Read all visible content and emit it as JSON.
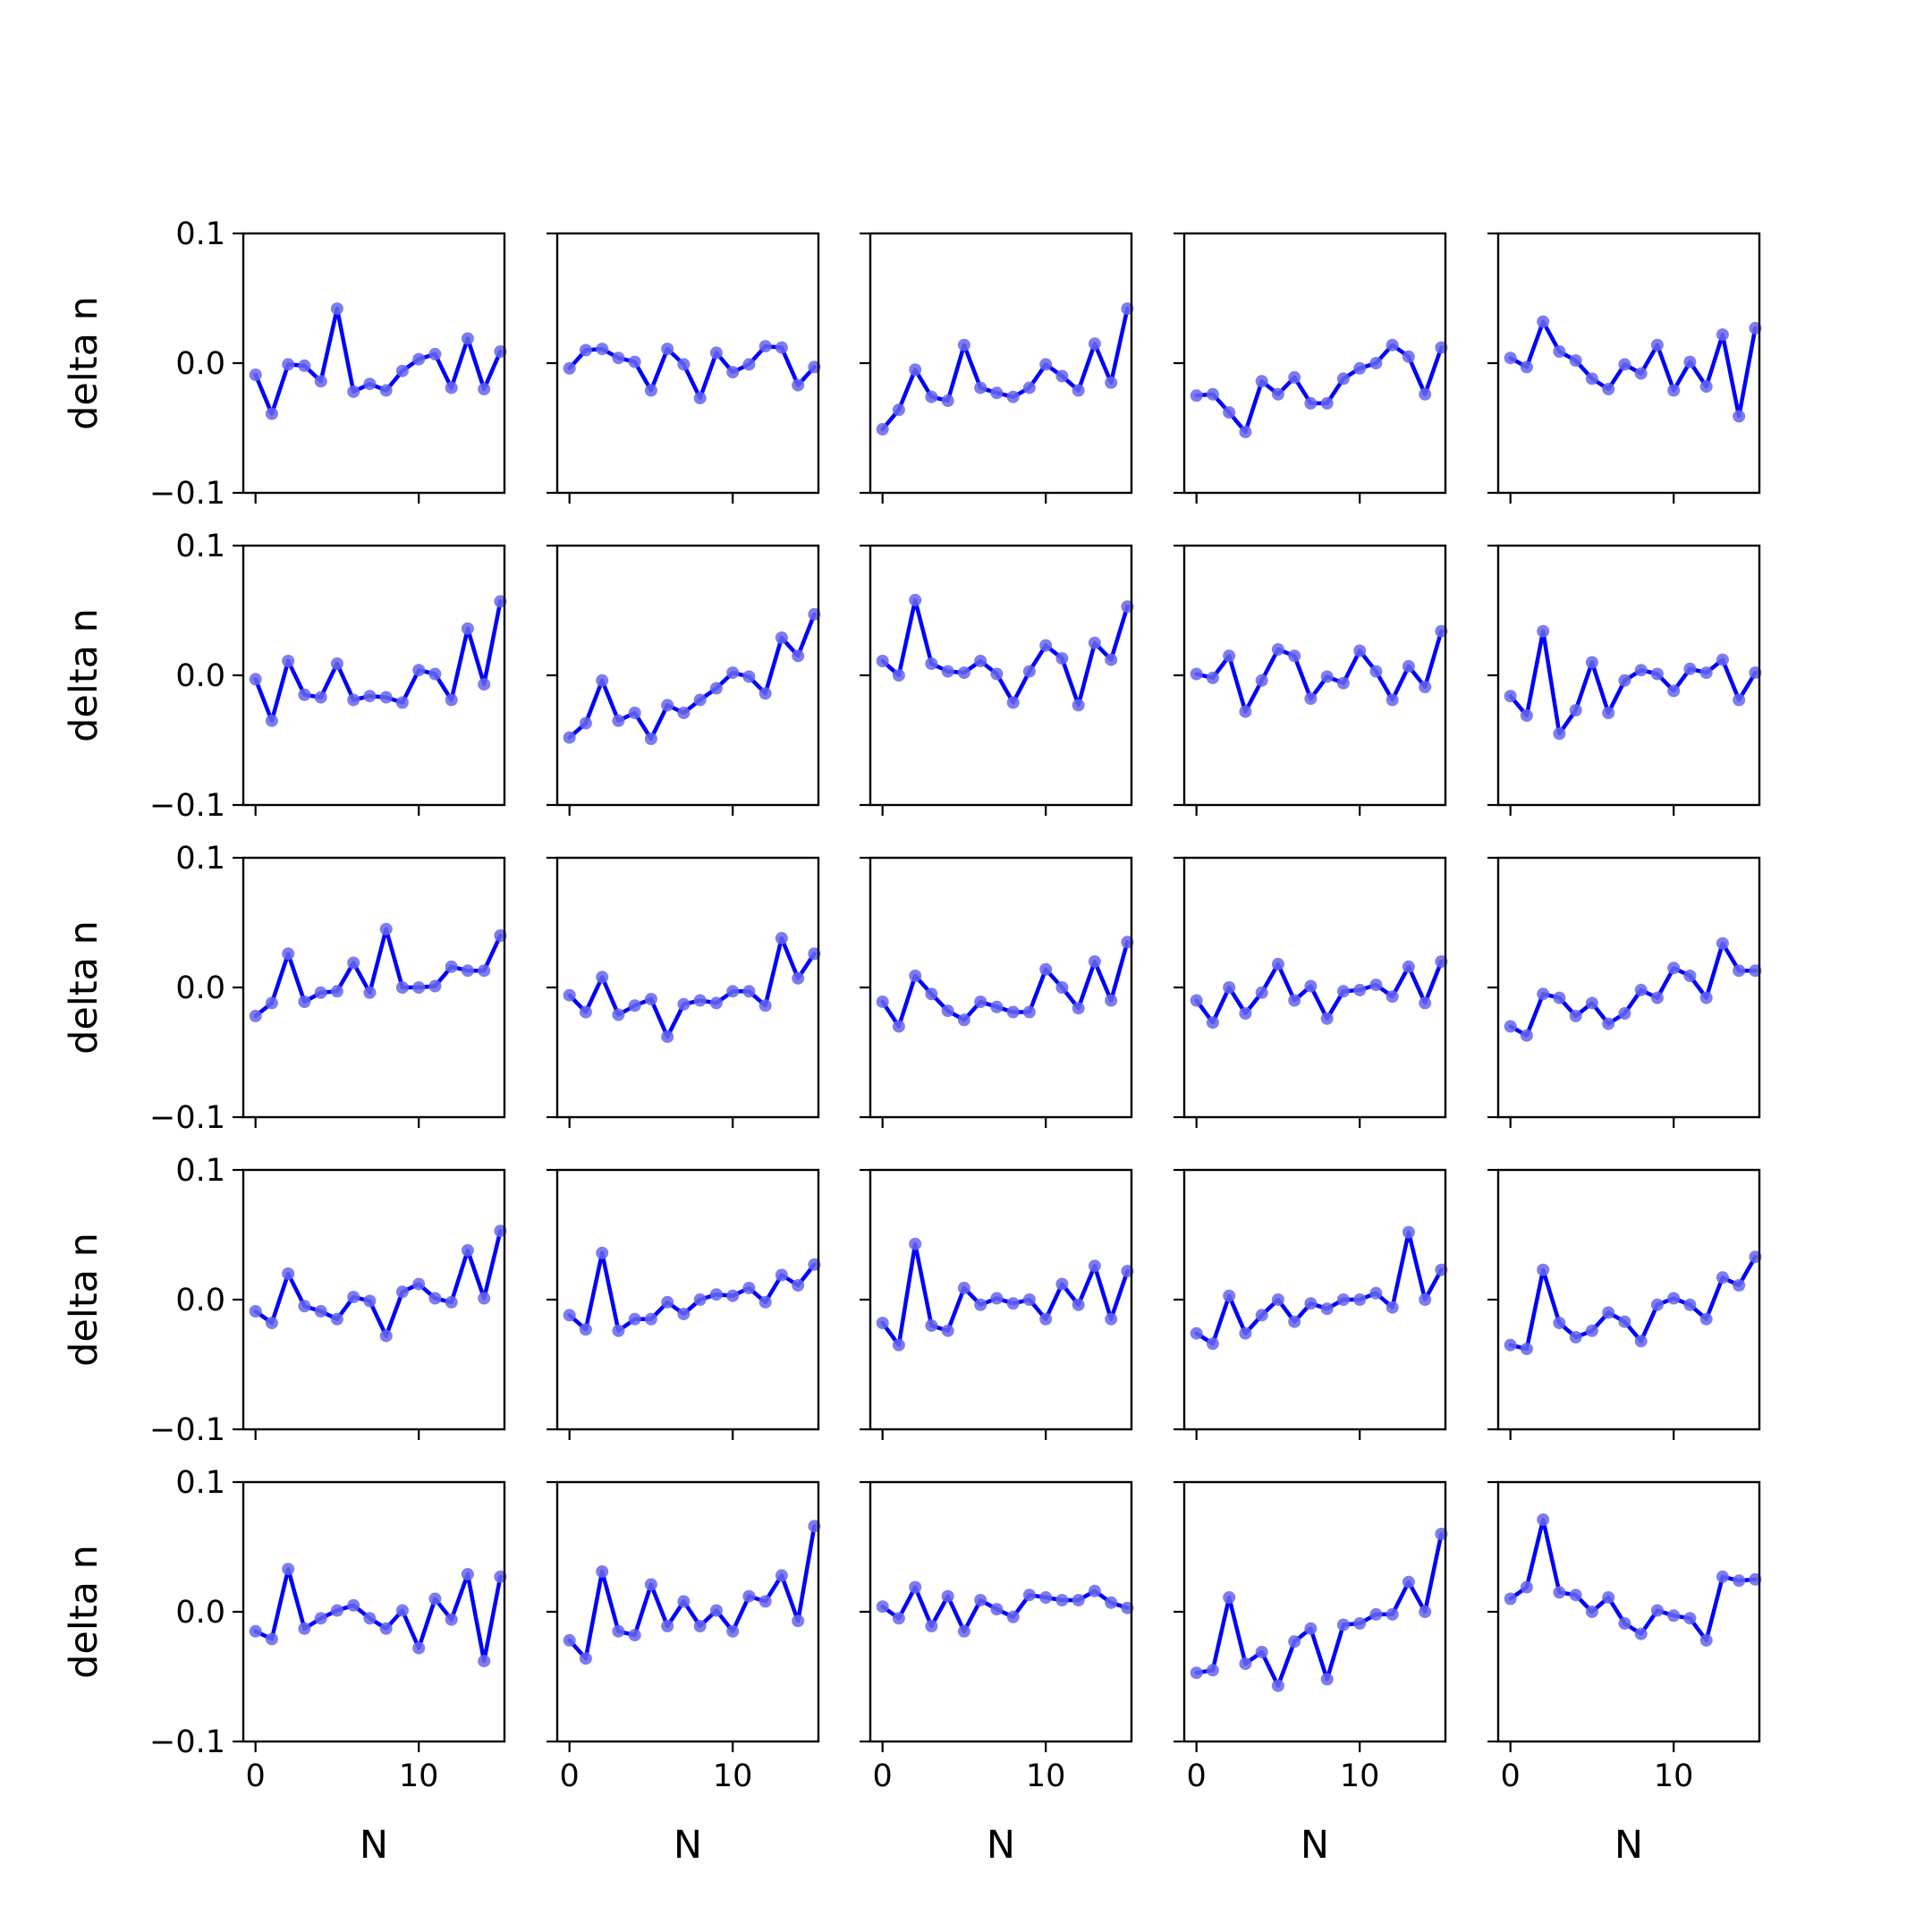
{
  "chart_data": {
    "type": "line",
    "layout": "5x5 grid of small-multiple line plots with markers",
    "sharex": true,
    "sharey": true,
    "xlabel": "N",
    "ylabel": "delta n",
    "xlim": [
      -0.75,
      15.25
    ],
    "ylim": [
      -0.1,
      0.1
    ],
    "xticks": [
      0,
      10
    ],
    "xtick_labels": [
      "0",
      "10"
    ],
    "yticks": [
      -0.1,
      0.0,
      0.1
    ],
    "ytick_labels": [
      "−0.1",
      "0.0",
      "0.1"
    ],
    "grid": false,
    "line_color": "#0000ff",
    "marker_color": "#6666ee",
    "x": [
      0,
      1,
      2,
      3,
      4,
      5,
      6,
      7,
      8,
      9,
      10,
      11,
      12,
      13,
      14,
      15
    ],
    "panels": [
      [
        [
          -0.009,
          -0.039,
          -0.001,
          -0.002,
          -0.014,
          0.042,
          -0.022,
          -0.016,
          -0.021,
          -0.006,
          0.003,
          0.007,
          -0.019,
          0.019,
          -0.02,
          0.009
        ],
        [
          -0.004,
          0.01,
          0.011,
          0.004,
          0.001,
          -0.021,
          0.011,
          -0.001,
          -0.027,
          0.008,
          -0.007,
          -0.001,
          0.013,
          0.012,
          -0.017,
          -0.003
        ],
        [
          -0.051,
          -0.036,
          -0.005,
          -0.026,
          -0.029,
          0.014,
          -0.019,
          -0.023,
          -0.026,
          -0.019,
          -0.001,
          -0.01,
          -0.021,
          0.015,
          -0.015,
          0.042
        ],
        [
          -0.025,
          -0.024,
          -0.038,
          -0.053,
          -0.014,
          -0.024,
          -0.011,
          -0.031,
          -0.031,
          -0.012,
          -0.004,
          0.0,
          0.014,
          0.005,
          -0.024,
          0.012
        ],
        [
          0.004,
          -0.003,
          0.032,
          0.009,
          0.002,
          -0.012,
          -0.02,
          -0.001,
          -0.008,
          0.014,
          -0.021,
          0.001,
          -0.018,
          0.022,
          -0.041,
          0.027
        ]
      ],
      [
        [
          -0.003,
          -0.035,
          0.011,
          -0.015,
          -0.017,
          0.009,
          -0.019,
          -0.016,
          -0.017,
          -0.021,
          0.004,
          0.001,
          -0.019,
          0.036,
          -0.007,
          0.057
        ],
        [
          -0.048,
          -0.037,
          -0.004,
          -0.035,
          -0.029,
          -0.049,
          -0.023,
          -0.029,
          -0.019,
          -0.01,
          0.002,
          -0.001,
          -0.014,
          0.029,
          0.015,
          0.047
        ],
        [
          0.011,
          0.0,
          0.058,
          0.009,
          0.003,
          0.002,
          0.011,
          0.001,
          -0.021,
          0.003,
          0.023,
          0.013,
          -0.023,
          0.025,
          0.012,
          0.053
        ],
        [
          0.001,
          -0.002,
          0.015,
          -0.028,
          -0.004,
          0.02,
          0.015,
          -0.018,
          -0.001,
          -0.006,
          0.019,
          0.003,
          -0.019,
          0.007,
          -0.009,
          0.034
        ],
        [
          -0.016,
          -0.031,
          0.034,
          -0.045,
          -0.027,
          0.01,
          -0.029,
          -0.004,
          0.004,
          0.001,
          -0.012,
          0.005,
          0.002,
          0.012,
          -0.019,
          0.002
        ]
      ],
      [
        [
          -0.022,
          -0.012,
          0.026,
          -0.011,
          -0.004,
          -0.003,
          0.019,
          -0.004,
          0.045,
          0.0,
          0.0,
          0.001,
          0.016,
          0.013,
          0.013,
          0.04
        ],
        [
          -0.006,
          -0.019,
          0.008,
          -0.021,
          -0.014,
          -0.009,
          -0.038,
          -0.013,
          -0.01,
          -0.012,
          -0.003,
          -0.003,
          -0.014,
          0.038,
          0.007,
          0.026
        ],
        [
          -0.011,
          -0.03,
          0.009,
          -0.005,
          -0.018,
          -0.025,
          -0.011,
          -0.015,
          -0.019,
          -0.019,
          0.014,
          0.0,
          -0.016,
          0.02,
          -0.01,
          0.035
        ],
        [
          -0.01,
          -0.027,
          0.0,
          -0.02,
          -0.004,
          0.018,
          -0.01,
          0.001,
          -0.024,
          -0.003,
          -0.002,
          0.002,
          -0.007,
          0.016,
          -0.012,
          0.02
        ],
        [
          -0.03,
          -0.037,
          -0.005,
          -0.008,
          -0.022,
          -0.012,
          -0.028,
          -0.02,
          -0.002,
          -0.008,
          0.015,
          0.009,
          -0.008,
          0.034,
          0.013,
          0.013
        ]
      ],
      [
        [
          -0.009,
          -0.018,
          0.02,
          -0.005,
          -0.009,
          -0.015,
          0.002,
          -0.001,
          -0.028,
          0.006,
          0.012,
          0.001,
          -0.002,
          0.038,
          0.001,
          0.053
        ],
        [
          -0.012,
          -0.023,
          0.036,
          -0.024,
          -0.015,
          -0.015,
          -0.002,
          -0.011,
          0.0,
          0.004,
          0.003,
          0.009,
          -0.002,
          0.019,
          0.011,
          0.027
        ],
        [
          -0.018,
          -0.035,
          0.043,
          -0.02,
          -0.024,
          0.009,
          -0.004,
          0.001,
          -0.003,
          0.0,
          -0.015,
          0.012,
          -0.004,
          0.026,
          -0.015,
          0.022
        ],
        [
          -0.026,
          -0.034,
          0.003,
          -0.026,
          -0.012,
          0.0,
          -0.017,
          -0.003,
          -0.007,
          0.0,
          0.0,
          0.005,
          -0.006,
          0.052,
          0.0,
          0.023
        ],
        [
          -0.035,
          -0.038,
          0.023,
          -0.018,
          -0.029,
          -0.024,
          -0.01,
          -0.017,
          -0.032,
          -0.004,
          0.001,
          -0.004,
          -0.015,
          0.017,
          0.011,
          0.033
        ]
      ],
      [
        [
          -0.015,
          -0.021,
          0.033,
          -0.013,
          -0.005,
          0.001,
          0.005,
          -0.005,
          -0.013,
          0.001,
          -0.028,
          0.01,
          -0.006,
          0.029,
          -0.038,
          0.027
        ],
        [
          -0.022,
          -0.036,
          0.031,
          -0.015,
          -0.018,
          0.021,
          -0.011,
          0.008,
          -0.011,
          0.001,
          -0.015,
          0.012,
          0.008,
          0.028,
          -0.007,
          0.066
        ],
        [
          0.004,
          -0.005,
          0.019,
          -0.011,
          0.012,
          -0.015,
          0.009,
          0.002,
          -0.004,
          0.013,
          0.011,
          0.009,
          0.009,
          0.016,
          0.007,
          0.003
        ],
        [
          -0.047,
          -0.045,
          0.011,
          -0.04,
          -0.031,
          -0.057,
          -0.023,
          -0.013,
          -0.052,
          -0.01,
          -0.009,
          -0.002,
          -0.002,
          0.023,
          0.0,
          0.06
        ],
        [
          0.01,
          0.019,
          0.071,
          0.015,
          0.013,
          0.0,
          0.011,
          -0.009,
          -0.017,
          0.001,
          -0.003,
          -0.005,
          -0.022,
          0.027,
          0.024,
          0.025
        ]
      ]
    ]
  }
}
